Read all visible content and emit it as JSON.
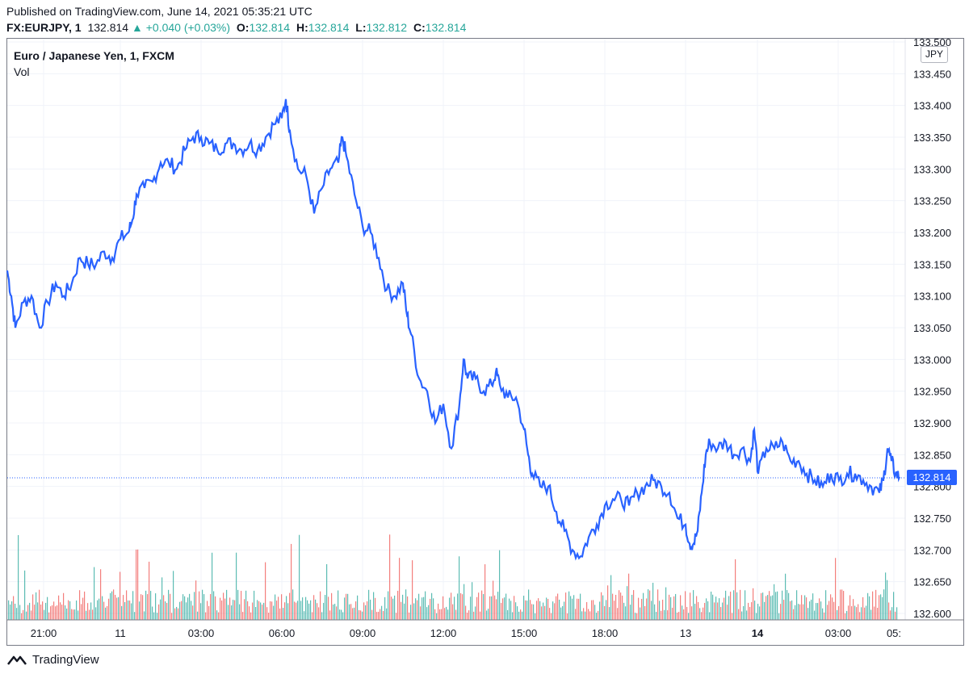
{
  "header": {
    "published": "Published on TradingView.com, June 14, 2021 05:35:21 UTC",
    "symbol": "FX:EURJPY, 1",
    "last": "132.814",
    "change": "▲ +0.040 (+0.03%)",
    "o_label": "O:",
    "o_value": "132.814",
    "h_label": "H:",
    "h_value": "132.814",
    "l_label": "L:",
    "l_value": "132.812",
    "c_label": "C:",
    "c_value": "132.814"
  },
  "legend": {
    "title": "Euro / Japanese Yen, 1, FXCM",
    "vol": "Vol"
  },
  "currency_button": "JPY",
  "current_price_tag": "132.814",
  "footer": {
    "brand": "TradingView"
  },
  "colors": {
    "line": "#2962ff",
    "vol_up": "#26a69a",
    "vol_down": "#ef5350",
    "grid": "#f0f3fa"
  },
  "chart_data": {
    "type": "line",
    "title": "Euro / Japanese Yen, 1, FXCM",
    "ylim": [
      132.6,
      133.5
    ],
    "yticks": [
      "133.500",
      "133.450",
      "133.400",
      "133.350",
      "133.300",
      "133.250",
      "133.200",
      "133.150",
      "133.100",
      "133.050",
      "133.000",
      "132.950",
      "132.900",
      "132.850",
      "132.800",
      "132.750",
      "132.700",
      "132.650",
      "132.600"
    ],
    "xticks": [
      {
        "label": "21:00",
        "x": 0.045,
        "bold": false
      },
      {
        "label": "11",
        "x": 0.14,
        "bold": false
      },
      {
        "label": "03:00",
        "x": 0.24,
        "bold": false
      },
      {
        "label": "06:00",
        "x": 0.34,
        "bold": false
      },
      {
        "label": "09:00",
        "x": 0.44,
        "bold": false
      },
      {
        "label": "12:00",
        "x": 0.54,
        "bold": false
      },
      {
        "label": "15:00",
        "x": 0.64,
        "bold": false
      },
      {
        "label": "18:00",
        "x": 0.74,
        "bold": false
      },
      {
        "label": "13",
        "x": 0.84,
        "bold": false
      },
      {
        "label": "14",
        "x": 0.929,
        "bold": true
      },
      {
        "label": "03:00",
        "x": 1.029,
        "bold": false
      },
      {
        "label": "05:",
        "x": 1.098,
        "bold": false
      }
    ],
    "series": [
      {
        "values": [
          [
            0.0,
            133.14
          ],
          [
            0.005,
            133.1
          ],
          [
            0.01,
            133.05
          ],
          [
            0.02,
            133.09
          ],
          [
            0.03,
            133.1
          ],
          [
            0.04,
            133.05
          ],
          [
            0.05,
            133.09
          ],
          [
            0.06,
            133.12
          ],
          [
            0.07,
            133.1
          ],
          [
            0.08,
            133.12
          ],
          [
            0.09,
            133.16
          ],
          [
            0.1,
            133.15
          ],
          [
            0.11,
            133.15
          ],
          [
            0.12,
            133.17
          ],
          [
            0.13,
            133.16
          ],
          [
            0.14,
            133.19
          ],
          [
            0.15,
            133.2
          ],
          [
            0.155,
            133.22
          ],
          [
            0.16,
            133.26
          ],
          [
            0.17,
            133.27
          ],
          [
            0.18,
            133.28
          ],
          [
            0.19,
            133.31
          ],
          [
            0.2,
            133.31
          ],
          [
            0.21,
            133.3
          ],
          [
            0.22,
            133.33
          ],
          [
            0.23,
            133.35
          ],
          [
            0.24,
            133.35
          ],
          [
            0.25,
            133.34
          ],
          [
            0.26,
            133.33
          ],
          [
            0.27,
            133.34
          ],
          [
            0.28,
            133.34
          ],
          [
            0.29,
            133.33
          ],
          [
            0.3,
            133.34
          ],
          [
            0.31,
            133.33
          ],
          [
            0.32,
            133.35
          ],
          [
            0.33,
            133.37
          ],
          [
            0.34,
            133.38
          ],
          [
            0.345,
            133.41
          ],
          [
            0.35,
            133.36
          ],
          [
            0.36,
            133.3
          ],
          [
            0.37,
            133.29
          ],
          [
            0.38,
            133.23
          ],
          [
            0.39,
            133.27
          ],
          [
            0.4,
            133.3
          ],
          [
            0.41,
            133.31
          ],
          [
            0.415,
            133.35
          ],
          [
            0.42,
            133.32
          ],
          [
            0.43,
            133.26
          ],
          [
            0.44,
            133.21
          ],
          [
            0.45,
            133.2
          ],
          [
            0.46,
            133.16
          ],
          [
            0.47,
            133.11
          ],
          [
            0.48,
            133.1
          ],
          [
            0.49,
            133.12
          ],
          [
            0.495,
            133.07
          ],
          [
            0.5,
            133.04
          ],
          [
            0.51,
            132.97
          ],
          [
            0.52,
            132.95
          ],
          [
            0.53,
            132.9
          ],
          [
            0.54,
            132.93
          ],
          [
            0.55,
            132.86
          ],
          [
            0.56,
            132.93
          ],
          [
            0.565,
            133.0
          ],
          [
            0.57,
            132.97
          ],
          [
            0.58,
            132.97
          ],
          [
            0.59,
            132.95
          ],
          [
            0.6,
            132.96
          ],
          [
            0.605,
            132.98
          ],
          [
            0.61,
            132.96
          ],
          [
            0.62,
            132.94
          ],
          [
            0.63,
            132.94
          ],
          [
            0.64,
            132.89
          ],
          [
            0.645,
            132.85
          ],
          [
            0.65,
            132.82
          ],
          [
            0.66,
            132.8
          ],
          [
            0.67,
            132.8
          ],
          [
            0.68,
            132.76
          ],
          [
            0.69,
            132.73
          ],
          [
            0.7,
            132.7
          ],
          [
            0.71,
            132.69
          ],
          [
            0.72,
            132.72
          ],
          [
            0.73,
            132.74
          ],
          [
            0.74,
            132.77
          ],
          [
            0.75,
            132.78
          ],
          [
            0.76,
            132.78
          ],
          [
            0.77,
            132.77
          ],
          [
            0.78,
            132.79
          ],
          [
            0.79,
            132.8
          ],
          [
            0.8,
            132.81
          ],
          [
            0.81,
            132.8
          ],
          [
            0.82,
            132.79
          ],
          [
            0.83,
            132.75
          ],
          [
            0.84,
            132.74
          ],
          [
            0.845,
            132.71
          ],
          [
            0.85,
            132.71
          ],
          [
            0.855,
            132.73
          ],
          [
            0.86,
            132.79
          ],
          [
            0.865,
            132.85
          ],
          [
            0.87,
            132.87
          ],
          [
            0.88,
            132.86
          ],
          [
            0.89,
            132.87
          ],
          [
            0.9,
            132.85
          ],
          [
            0.91,
            132.86
          ],
          [
            0.92,
            132.84
          ],
          [
            0.925,
            132.89
          ],
          [
            0.93,
            132.82
          ],
          [
            0.94,
            132.86
          ],
          [
            0.95,
            132.86
          ],
          [
            0.96,
            132.87
          ],
          [
            0.97,
            132.84
          ],
          [
            0.98,
            132.84
          ],
          [
            0.99,
            132.82
          ],
          [
            1.0,
            132.81
          ],
          [
            1.01,
            132.8
          ],
          [
            1.02,
            132.82
          ],
          [
            1.03,
            132.81
          ],
          [
            1.04,
            132.82
          ],
          [
            1.05,
            132.82
          ],
          [
            1.06,
            132.81
          ],
          [
            1.07,
            132.8
          ],
          [
            1.08,
            132.79
          ],
          [
            1.085,
            132.81
          ],
          [
            1.09,
            132.86
          ],
          [
            1.095,
            132.84
          ],
          [
            1.1,
            132.82
          ],
          [
            1.105,
            132.815
          ]
        ]
      }
    ],
    "current_value": 132.814,
    "volume_note": "Vol"
  }
}
